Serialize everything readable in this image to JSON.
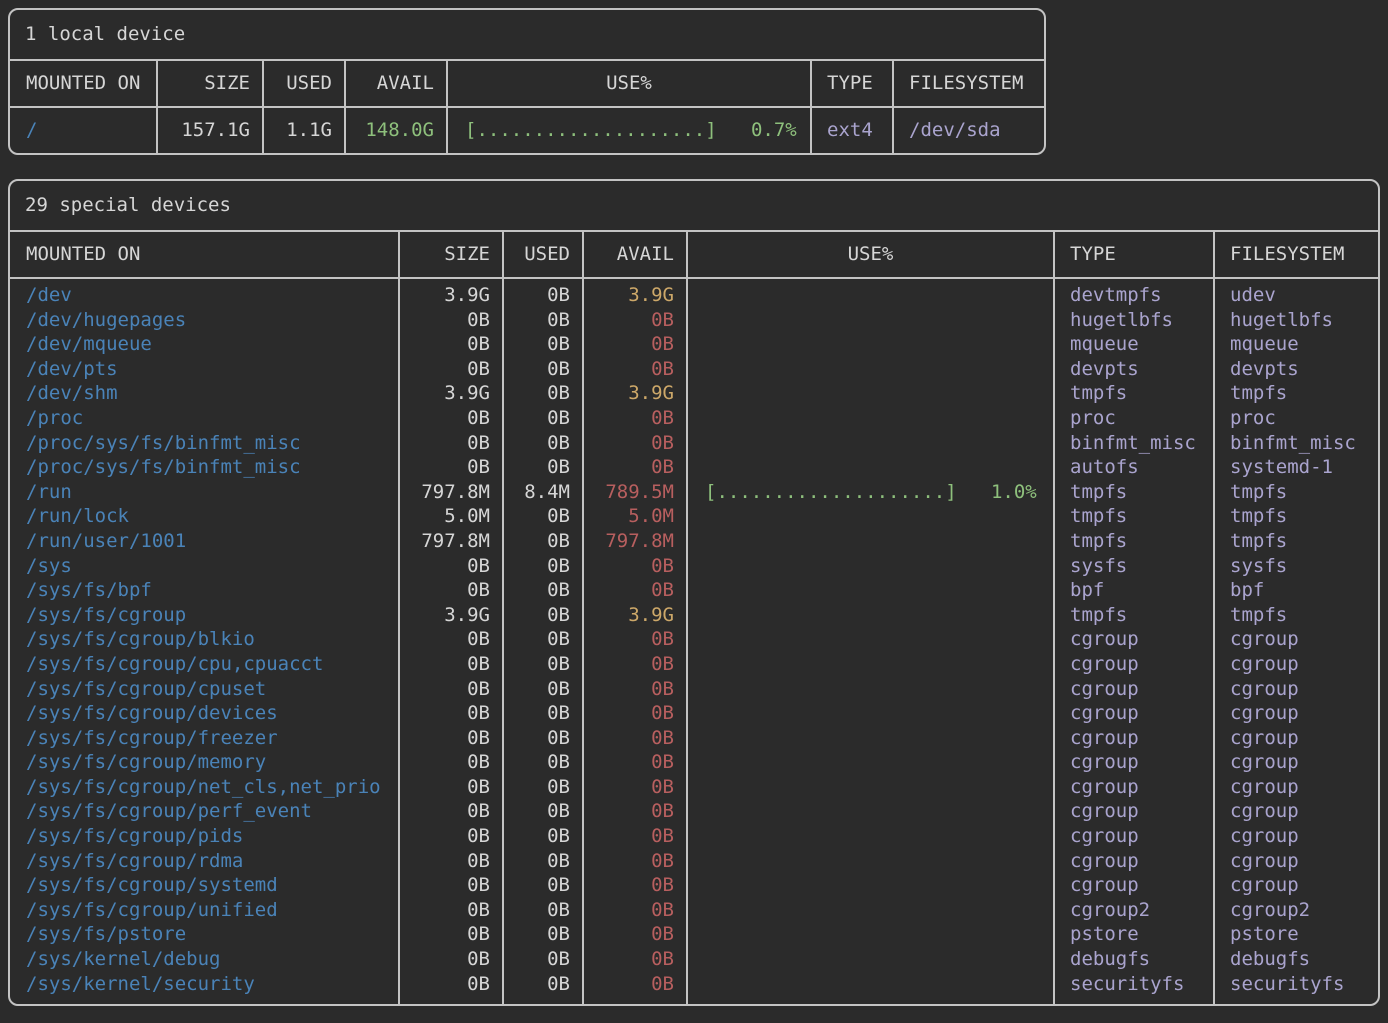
{
  "colors": {
    "background": "#2b2b2b",
    "frame": "#c3c3c3",
    "text": "#d6d6d6",
    "mountpoint": "#4a83b8",
    "avail_high": "#8ec07c",
    "avail_medium": "#cda869",
    "avail_low": "#b85f5f",
    "fs_type": "#aaa4ce"
  },
  "local_devices": {
    "title": "1 local device",
    "columns": [
      "MOUNTED ON",
      "SIZE",
      "USED",
      "AVAIL",
      "USE%",
      "TYPE",
      "FILESYSTEM"
    ],
    "rows": [
      {
        "mount": "/",
        "size": "157.1G",
        "used": "1.1G",
        "avail": "148.0G",
        "level": "ok",
        "use": "[....................]   0.7%",
        "type": "ext4",
        "fs": "/dev/sda"
      }
    ]
  },
  "special_devices": {
    "title": "29 special devices",
    "columns": [
      "MOUNTED ON",
      "SIZE",
      "USED",
      "AVAIL",
      "USE%",
      "TYPE",
      "FILESYSTEM"
    ],
    "rows": [
      {
        "mount": "/dev",
        "size": "3.9G",
        "used": "0B",
        "avail": "3.9G",
        "level": "warn",
        "use": "",
        "type": "devtmpfs",
        "fs": "udev"
      },
      {
        "mount": "/dev/hugepages",
        "size": "0B",
        "used": "0B",
        "avail": "0B",
        "level": "low",
        "use": "",
        "type": "hugetlbfs",
        "fs": "hugetlbfs"
      },
      {
        "mount": "/dev/mqueue",
        "size": "0B",
        "used": "0B",
        "avail": "0B",
        "level": "low",
        "use": "",
        "type": "mqueue",
        "fs": "mqueue"
      },
      {
        "mount": "/dev/pts",
        "size": "0B",
        "used": "0B",
        "avail": "0B",
        "level": "low",
        "use": "",
        "type": "devpts",
        "fs": "devpts"
      },
      {
        "mount": "/dev/shm",
        "size": "3.9G",
        "used": "0B",
        "avail": "3.9G",
        "level": "warn",
        "use": "",
        "type": "tmpfs",
        "fs": "tmpfs"
      },
      {
        "mount": "/proc",
        "size": "0B",
        "used": "0B",
        "avail": "0B",
        "level": "low",
        "use": "",
        "type": "proc",
        "fs": "proc"
      },
      {
        "mount": "/proc/sys/fs/binfmt_misc",
        "size": "0B",
        "used": "0B",
        "avail": "0B",
        "level": "low",
        "use": "",
        "type": "binfmt_misc",
        "fs": "binfmt_misc"
      },
      {
        "mount": "/proc/sys/fs/binfmt_misc",
        "size": "0B",
        "used": "0B",
        "avail": "0B",
        "level": "low",
        "use": "",
        "type": "autofs",
        "fs": "systemd-1"
      },
      {
        "mount": "/run",
        "size": "797.8M",
        "used": "8.4M",
        "avail": "789.5M",
        "level": "low",
        "use": "[....................]   1.0%",
        "type": "tmpfs",
        "fs": "tmpfs"
      },
      {
        "mount": "/run/lock",
        "size": "5.0M",
        "used": "0B",
        "avail": "5.0M",
        "level": "low",
        "use": "",
        "type": "tmpfs",
        "fs": "tmpfs"
      },
      {
        "mount": "/run/user/1001",
        "size": "797.8M",
        "used": "0B",
        "avail": "797.8M",
        "level": "low",
        "use": "",
        "type": "tmpfs",
        "fs": "tmpfs"
      },
      {
        "mount": "/sys",
        "size": "0B",
        "used": "0B",
        "avail": "0B",
        "level": "low",
        "use": "",
        "type": "sysfs",
        "fs": "sysfs"
      },
      {
        "mount": "/sys/fs/bpf",
        "size": "0B",
        "used": "0B",
        "avail": "0B",
        "level": "low",
        "use": "",
        "type": "bpf",
        "fs": "bpf"
      },
      {
        "mount": "/sys/fs/cgroup",
        "size": "3.9G",
        "used": "0B",
        "avail": "3.9G",
        "level": "warn",
        "use": "",
        "type": "tmpfs",
        "fs": "tmpfs"
      },
      {
        "mount": "/sys/fs/cgroup/blkio",
        "size": "0B",
        "used": "0B",
        "avail": "0B",
        "level": "low",
        "use": "",
        "type": "cgroup",
        "fs": "cgroup"
      },
      {
        "mount": "/sys/fs/cgroup/cpu,cpuacct",
        "size": "0B",
        "used": "0B",
        "avail": "0B",
        "level": "low",
        "use": "",
        "type": "cgroup",
        "fs": "cgroup"
      },
      {
        "mount": "/sys/fs/cgroup/cpuset",
        "size": "0B",
        "used": "0B",
        "avail": "0B",
        "level": "low",
        "use": "",
        "type": "cgroup",
        "fs": "cgroup"
      },
      {
        "mount": "/sys/fs/cgroup/devices",
        "size": "0B",
        "used": "0B",
        "avail": "0B",
        "level": "low",
        "use": "",
        "type": "cgroup",
        "fs": "cgroup"
      },
      {
        "mount": "/sys/fs/cgroup/freezer",
        "size": "0B",
        "used": "0B",
        "avail": "0B",
        "level": "low",
        "use": "",
        "type": "cgroup",
        "fs": "cgroup"
      },
      {
        "mount": "/sys/fs/cgroup/memory",
        "size": "0B",
        "used": "0B",
        "avail": "0B",
        "level": "low",
        "use": "",
        "type": "cgroup",
        "fs": "cgroup"
      },
      {
        "mount": "/sys/fs/cgroup/net_cls,net_prio",
        "size": "0B",
        "used": "0B",
        "avail": "0B",
        "level": "low",
        "use": "",
        "type": "cgroup",
        "fs": "cgroup"
      },
      {
        "mount": "/sys/fs/cgroup/perf_event",
        "size": "0B",
        "used": "0B",
        "avail": "0B",
        "level": "low",
        "use": "",
        "type": "cgroup",
        "fs": "cgroup"
      },
      {
        "mount": "/sys/fs/cgroup/pids",
        "size": "0B",
        "used": "0B",
        "avail": "0B",
        "level": "low",
        "use": "",
        "type": "cgroup",
        "fs": "cgroup"
      },
      {
        "mount": "/sys/fs/cgroup/rdma",
        "size": "0B",
        "used": "0B",
        "avail": "0B",
        "level": "low",
        "use": "",
        "type": "cgroup",
        "fs": "cgroup"
      },
      {
        "mount": "/sys/fs/cgroup/systemd",
        "size": "0B",
        "used": "0B",
        "avail": "0B",
        "level": "low",
        "use": "",
        "type": "cgroup",
        "fs": "cgroup"
      },
      {
        "mount": "/sys/fs/cgroup/unified",
        "size": "0B",
        "used": "0B",
        "avail": "0B",
        "level": "low",
        "use": "",
        "type": "cgroup2",
        "fs": "cgroup2"
      },
      {
        "mount": "/sys/fs/pstore",
        "size": "0B",
        "used": "0B",
        "avail": "0B",
        "level": "low",
        "use": "",
        "type": "pstore",
        "fs": "pstore"
      },
      {
        "mount": "/sys/kernel/debug",
        "size": "0B",
        "used": "0B",
        "avail": "0B",
        "level": "low",
        "use": "",
        "type": "debugfs",
        "fs": "debugfs"
      },
      {
        "mount": "/sys/kernel/security",
        "size": "0B",
        "used": "0B",
        "avail": "0B",
        "level": "low",
        "use": "",
        "type": "securityfs",
        "fs": "securityfs"
      }
    ]
  }
}
